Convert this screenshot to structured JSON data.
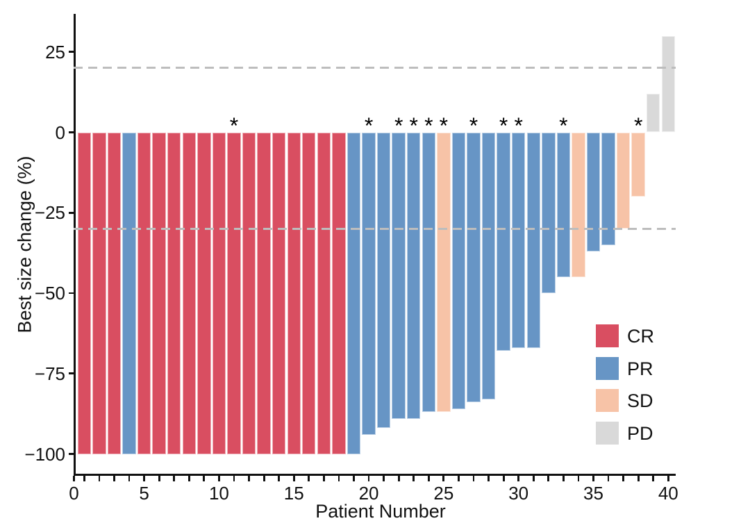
{
  "chart_data": {
    "type": "bar",
    "subtype": "waterfall",
    "title": "",
    "xlabel": "Patient Number",
    "ylabel": "Best size change (%)",
    "x_axis": {
      "min": 0,
      "max": 40,
      "minor_tick_step": 1,
      "major_ticks": [
        0,
        5,
        10,
        15,
        20,
        25,
        30,
        35,
        40
      ]
    },
    "y_axis": {
      "ticks": [
        25,
        0,
        -25,
        -50,
        -75,
        -100
      ],
      "visible_range": [
        -107,
        37
      ]
    },
    "grid": "off",
    "reference_lines": {
      "values": [
        20,
        -30
      ],
      "style": "dashed",
      "color": "#bdbdbd"
    },
    "colors": {
      "CR": "#d94e61",
      "PR": "#6795c5",
      "SD": "#f7c3a7",
      "PD": "#d9d9d9"
    },
    "legend": {
      "position": "inside-bottom-right",
      "entries": [
        "CR",
        "PR",
        "SD",
        "PD"
      ]
    },
    "star_symbol": "*",
    "starred_patients": [
      11,
      20,
      22,
      23,
      24,
      25,
      27,
      29,
      30,
      33,
      38
    ],
    "patients": [
      {
        "patient": 1,
        "value": -100,
        "response": "CR",
        "star": false
      },
      {
        "patient": 2,
        "value": -100,
        "response": "CR",
        "star": false
      },
      {
        "patient": 3,
        "value": -100,
        "response": "CR",
        "star": false
      },
      {
        "patient": 4,
        "value": -100,
        "response": "PR",
        "star": false
      },
      {
        "patient": 5,
        "value": -100,
        "response": "CR",
        "star": false
      },
      {
        "patient": 6,
        "value": -100,
        "response": "CR",
        "star": false
      },
      {
        "patient": 7,
        "value": -100,
        "response": "CR",
        "star": false
      },
      {
        "patient": 8,
        "value": -100,
        "response": "CR",
        "star": false
      },
      {
        "patient": 9,
        "value": -100,
        "response": "CR",
        "star": false
      },
      {
        "patient": 10,
        "value": -100,
        "response": "CR",
        "star": false
      },
      {
        "patient": 11,
        "value": -100,
        "response": "CR",
        "star": true
      },
      {
        "patient": 12,
        "value": -100,
        "response": "CR",
        "star": false
      },
      {
        "patient": 13,
        "value": -100,
        "response": "CR",
        "star": false
      },
      {
        "pat": 0,
        "patient": 14,
        "value": -100,
        "response": "CR",
        "star": false
      },
      {
        "patient": 15,
        "value": -100,
        "response": "CR",
        "star": false
      },
      {
        "patient": 16,
        "value": -100,
        "response": "CR",
        "star": false
      },
      {
        "patient": 17,
        "value": -100,
        "response": "CR",
        "star": false
      },
      {
        "patient": 18,
        "value": -100,
        "response": "CR",
        "star": false
      },
      {
        "patient": 19,
        "value": -100,
        "response": "PR",
        "star": false
      },
      {
        "patient": 20,
        "value": -94,
        "response": "PR",
        "star": true
      },
      {
        "patient": 21,
        "value": -92,
        "response": "PR",
        "star": false
      },
      {
        "patient": 22,
        "value": -89,
        "response": "PR",
        "star": true
      },
      {
        "patient": 23,
        "value": -89,
        "response": "PR",
        "star": true
      },
      {
        "patient": 24,
        "value": -87,
        "response": "PR",
        "star": true
      },
      {
        "patient": 25,
        "value": -87,
        "response": "SD",
        "star": true
      },
      {
        "patient": 26,
        "value": -86,
        "response": "PR",
        "star": false
      },
      {
        "patient": 27,
        "value": -84,
        "response": "PR",
        "star": true
      },
      {
        "patient": 28,
        "value": -83,
        "response": "PR",
        "star": false
      },
      {
        "patient": 29,
        "value": -68,
        "response": "PR",
        "star": true
      },
      {
        "patient": 30,
        "value": -67,
        "response": "PR",
        "star": true
      },
      {
        "patient": 31,
        "value": -67,
        "response": "PR",
        "star": false
      },
      {
        "patient": 32,
        "value": -50,
        "response": "PR",
        "star": false
      },
      {
        "patient": 33,
        "value": -45,
        "response": "PR",
        "star": true
      },
      {
        "patient": 34,
        "value": -45,
        "response": "SD",
        "star": false
      },
      {
        "patient": 35,
        "value": -37,
        "response": "PR",
        "star": false
      },
      {
        "patient": 36,
        "value": -35,
        "response": "PR",
        "star": false
      },
      {
        "patient": 37,
        "value": -30,
        "response": "SD",
        "star": false
      },
      {
        "patient": 38,
        "value": -20,
        "response": "SD",
        "star": true
      },
      {
        "patient": 39,
        "value": 12,
        "response": "PD",
        "star": false
      },
      {
        "patient": 40,
        "value": 30,
        "response": "PD",
        "star": false
      }
    ]
  }
}
